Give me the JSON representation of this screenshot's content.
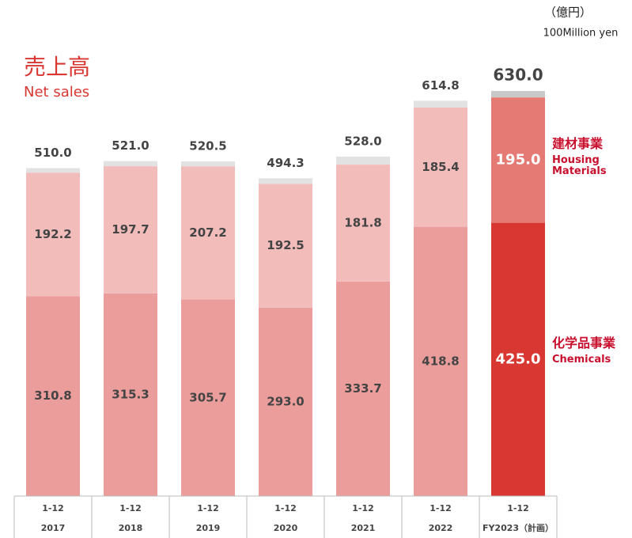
{
  "chart_data": {
    "type": "stacked_bar",
    "title": "売上高",
    "subtitle": "Net sales",
    "unit": "（億円）",
    "unit_en": "100Million yen",
    "categories": [
      "2017",
      "2018",
      "2019",
      "2020",
      "2021",
      "2022",
      "FY2023（計画）"
    ],
    "period_labels": [
      "1-12",
      "1-12",
      "1-12",
      "1-12",
      "1-12",
      "1-12",
      "1-12"
    ],
    "ylim": [
      0,
      630
    ],
    "series": [
      {
        "name": "化学品事業",
        "name_en": "Chemicals",
        "colors": [
          "#eb9d9b",
          "#eb9d9b",
          "#eb9d9b",
          "#eb9d9b",
          "#eb9d9b",
          "#eb9d9b",
          "#d93732"
        ],
        "values": [
          310.8,
          315.3,
          305.7,
          293.0,
          333.7,
          418.8,
          425.0
        ],
        "value_labels": [
          "310.8",
          "315.3",
          "305.7",
          "293.0",
          "333.7",
          "418.8",
          "425.0"
        ]
      },
      {
        "name": "建材事業",
        "name_en_lines": [
          "Housing",
          "Materials"
        ],
        "colors": [
          "#f2bcbb",
          "#f2bcbb",
          "#f2bcbb",
          "#f2bcbb",
          "#f2bcbb",
          "#f2bcbb",
          "#e57a75"
        ],
        "values": [
          192.2,
          197.7,
          207.2,
          192.5,
          181.8,
          185.4,
          195.0
        ],
        "value_labels": [
          "192.2",
          "197.7",
          "207.2",
          "192.5",
          "181.8",
          "185.4",
          "195.0"
        ]
      },
      {
        "colors": [
          "#e2e2e2",
          "#e2e2e2",
          "#e2e2e2",
          "#e2e2e2",
          "#e2e2e2",
          "#e2e2e2",
          "#c9c9c9"
        ],
        "values": [
          7.0,
          8.0,
          7.6,
          8.8,
          12.5,
          10.6,
          10.0
        ]
      }
    ],
    "totals": {
      "values": [
        510.0,
        521.0,
        520.5,
        494.3,
        528.0,
        614.8,
        630.0
      ],
      "value_labels": [
        "510.0",
        "521.0",
        "520.5",
        "494.3",
        "528.0",
        "614.8",
        "630.0"
      ]
    }
  }
}
